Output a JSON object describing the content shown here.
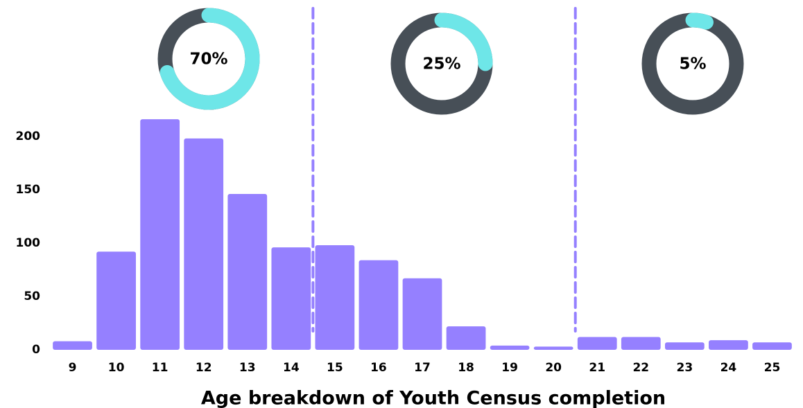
{
  "chart_data": [
    {
      "type": "bar",
      "xlabel": "Age breakdown of Youth Census completion",
      "categories": [
        "9",
        "10",
        "11",
        "12",
        "13",
        "14",
        "15",
        "16",
        "17",
        "18",
        "19",
        "20",
        "21",
        "22",
        "23",
        "24",
        "25"
      ],
      "values": [
        8,
        92,
        216,
        198,
        146,
        96,
        98,
        84,
        67,
        22,
        4,
        3,
        12,
        12,
        7,
        9,
        7
      ],
      "color": "#9580ff",
      "ylim": [
        0,
        220
      ],
      "yticks": [
        0,
        50,
        100,
        150,
        200
      ],
      "grid": false
    },
    {
      "type": "donut",
      "values": [
        70
      ],
      "value_labels": [
        "70%"
      ],
      "color": "#6ee6e8",
      "track_color": "#474f57"
    },
    {
      "type": "donut",
      "values": [
        25
      ],
      "value_labels": [
        "25%"
      ],
      "color": "#6ee6e8",
      "track_color": "#474f57"
    },
    {
      "type": "donut",
      "values": [
        5
      ],
      "value_labels": [
        "5%"
      ],
      "color": "#6ee6e8",
      "track_color": "#474f57"
    }
  ]
}
